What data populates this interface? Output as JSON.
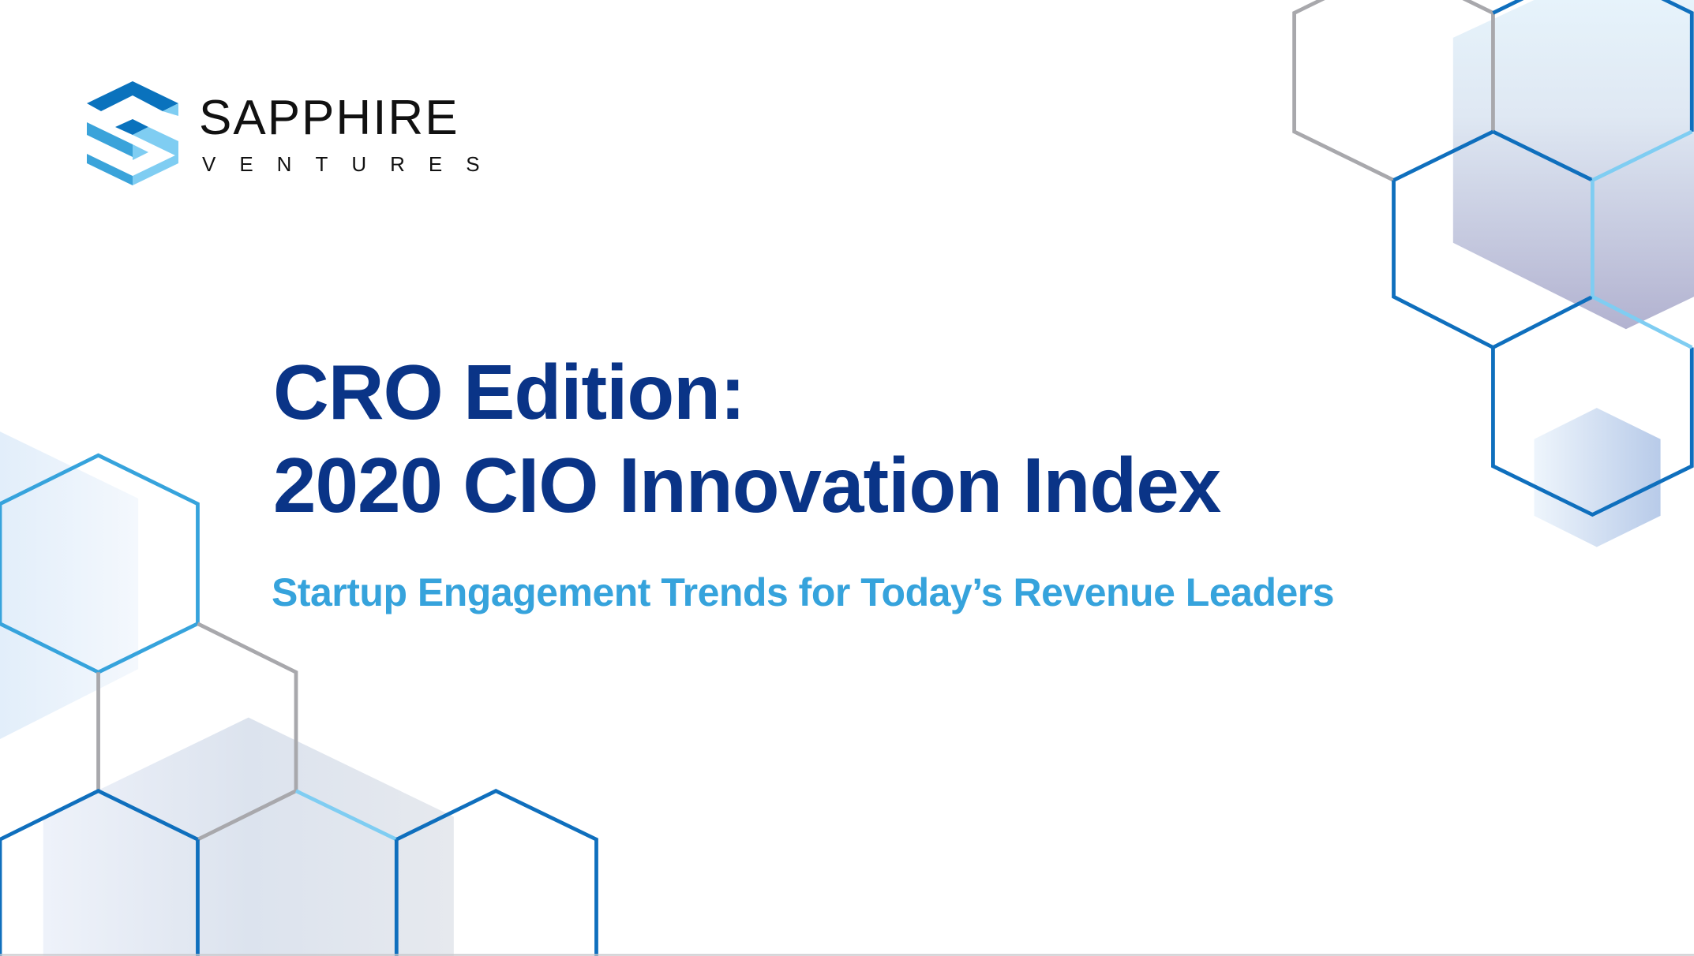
{
  "brand": {
    "name": "SAPPHIRE",
    "subname": "VENTURES",
    "colors": {
      "dark_blue": "#0a72bd",
      "mid_blue": "#3aa3da",
      "light_blue": "#7fcdf2"
    }
  },
  "cover": {
    "title_line1": "CRO Edition:",
    "title_line2": "2020 CIO Innovation Index",
    "subtitle": "Startup Engagement Trends for Today’s Revenue Leaders"
  },
  "colors": {
    "title": "#0a3487",
    "subtitle": "#36a3dc",
    "hex_blue": "#0f6fbd",
    "hex_gray": "#a8a8ac",
    "hex_light": "#7fcdf2"
  }
}
